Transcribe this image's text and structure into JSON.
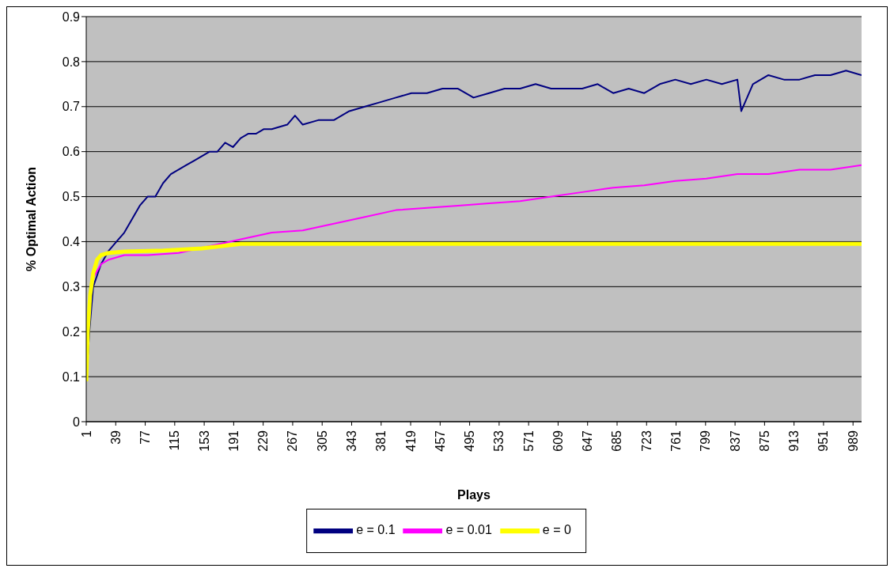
{
  "chart_data": {
    "type": "line",
    "xlabel": "Plays",
    "ylabel": "% Optimal Action",
    "xlim": [
      1,
      1000
    ],
    "xticks": [
      1,
      39,
      77,
      115,
      153,
      191,
      229,
      267,
      305,
      343,
      381,
      419,
      457,
      495,
      533,
      571,
      609,
      647,
      685,
      723,
      761,
      799,
      837,
      875,
      913,
      951,
      989
    ],
    "ylim": [
      0,
      0.9
    ],
    "yticks": [
      0,
      0.1,
      0.2,
      0.3,
      0.4,
      0.5,
      0.6,
      0.7,
      0.8,
      0.9
    ],
    "grid": "y",
    "legend": "bottom",
    "marker": "none",
    "line_style": "solid",
    "series": [
      {
        "name": "e = 0.1",
        "color": "#000080",
        "x": [
          1,
          5,
          10,
          20,
          30,
          40,
          50,
          60,
          70,
          80,
          90,
          100,
          110,
          120,
          130,
          140,
          150,
          160,
          170,
          180,
          190,
          200,
          210,
          220,
          230,
          240,
          260,
          270,
          280,
          300,
          320,
          340,
          360,
          380,
          400,
          420,
          440,
          460,
          480,
          500,
          520,
          540,
          560,
          580,
          600,
          620,
          640,
          660,
          680,
          700,
          720,
          740,
          760,
          780,
          800,
          820,
          840,
          845,
          860,
          880,
          900,
          920,
          940,
          960,
          980,
          1000
        ],
        "values": [
          0.09,
          0.2,
          0.3,
          0.35,
          0.38,
          0.4,
          0.42,
          0.45,
          0.48,
          0.5,
          0.5,
          0.53,
          0.55,
          0.56,
          0.57,
          0.58,
          0.59,
          0.6,
          0.6,
          0.62,
          0.61,
          0.63,
          0.64,
          0.64,
          0.65,
          0.65,
          0.66,
          0.68,
          0.66,
          0.67,
          0.67,
          0.69,
          0.7,
          0.71,
          0.72,
          0.73,
          0.73,
          0.74,
          0.74,
          0.72,
          0.73,
          0.74,
          0.74,
          0.75,
          0.74,
          0.74,
          0.74,
          0.75,
          0.73,
          0.74,
          0.73,
          0.75,
          0.76,
          0.75,
          0.76,
          0.75,
          0.76,
          0.69,
          0.75,
          0.77,
          0.76,
          0.76,
          0.77,
          0.77,
          0.78,
          0.77
        ]
      },
      {
        "name": "e = 0.01",
        "color": "#ff00ff",
        "x": [
          10,
          20,
          30,
          50,
          80,
          120,
          200,
          240,
          280,
          320,
          360,
          400,
          440,
          480,
          520,
          560,
          600,
          640,
          680,
          720,
          760,
          800,
          840,
          880,
          920,
          960,
          1000
        ],
        "values": [
          0.32,
          0.35,
          0.36,
          0.37,
          0.37,
          0.375,
          0.405,
          0.42,
          0.425,
          0.44,
          0.455,
          0.47,
          0.475,
          0.48,
          0.485,
          0.49,
          0.5,
          0.51,
          0.52,
          0.525,
          0.535,
          0.54,
          0.55,
          0.55,
          0.56,
          0.56,
          0.57
        ]
      },
      {
        "name": "e = 0",
        "color": "#ffff00",
        "x": [
          1,
          3,
          6,
          10,
          15,
          20,
          30,
          50,
          100,
          150,
          200,
          250,
          1000
        ],
        "values": [
          0.09,
          0.2,
          0.28,
          0.33,
          0.36,
          0.37,
          0.375,
          0.378,
          0.38,
          0.385,
          0.395,
          0.395,
          0.395
        ]
      }
    ]
  }
}
